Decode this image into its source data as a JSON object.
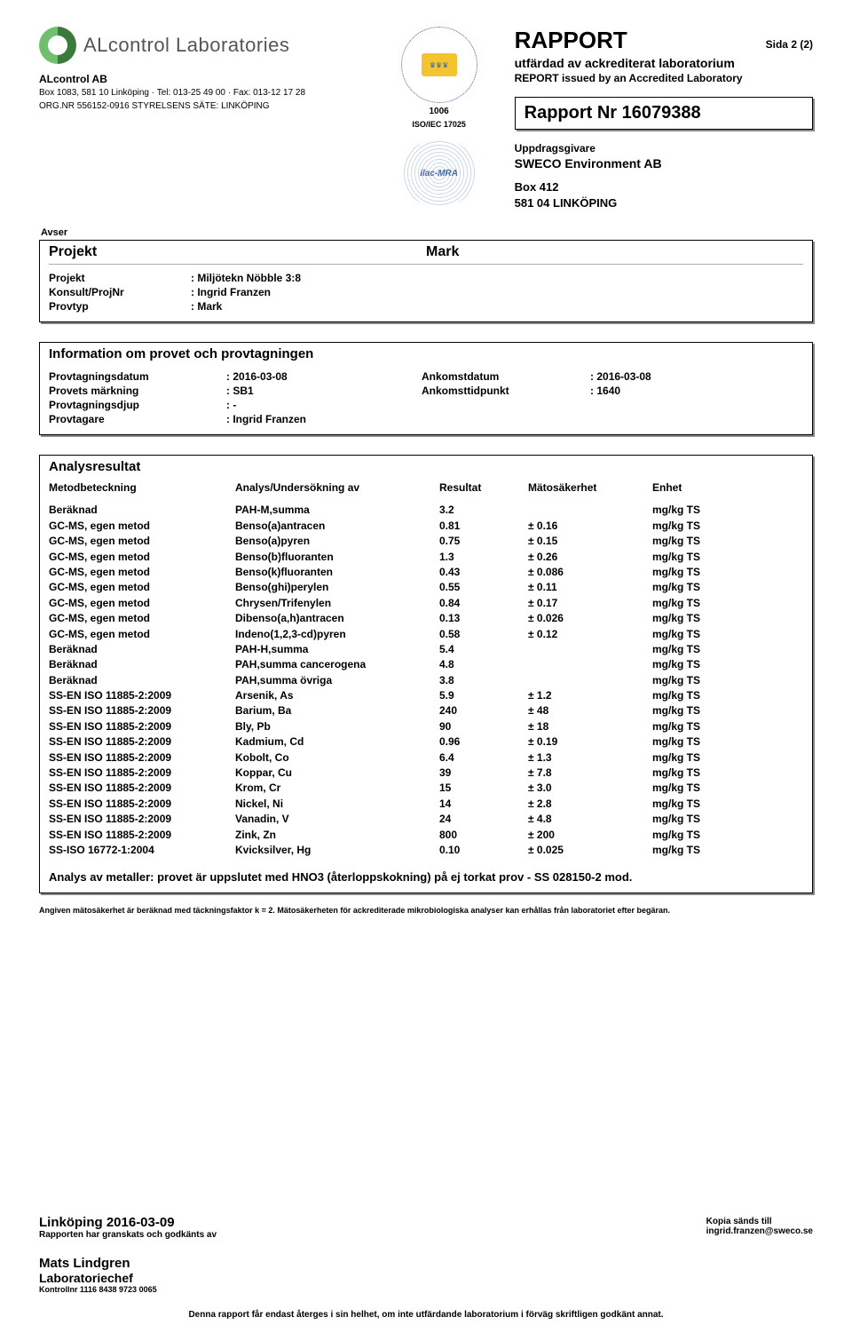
{
  "header": {
    "lab_name": "ALcontrol Laboratories",
    "company": "ALcontrol AB",
    "addr_line1": "Box 1083, 581 10  Linköping  ·  Tel: 013-25 49 00  ·  Fax: 013-12 17 28",
    "addr_line2": "ORG.NR 556152-0916  STYRELSENS SÄTE: LINKÖPING",
    "swedac_no": "1006",
    "swedac_std": "ISO/IEC 17025",
    "ilac_text": "ilac-MRA",
    "report_word": "RAPPORT",
    "page_label": "Sida",
    "page_value": "2 (2)",
    "issued_sv": "utfärdad av ackrediterat laboratorium",
    "issued_en": "REPORT issued by an Accredited Laboratory",
    "report_nr_label": "Rapport Nr",
    "report_nr": "16079388",
    "client_label": "Uppdragsgivare",
    "client_name": "SWECO Environment AB",
    "client_addr1": "Box 412",
    "client_addr2": "581 04  LINKÖPING"
  },
  "avser": {
    "label": "Avser",
    "projekt_word": "Projekt",
    "mark_word": "Mark",
    "rows": {
      "projekt_k": "Projekt",
      "projekt_v": "Miljötekn Nöbble 3:8",
      "konsult_k": "Konsult/ProjNr",
      "konsult_v": "Ingrid Franzen",
      "provtyp_k": "Provtyp",
      "provtyp_v": "Mark"
    }
  },
  "info": {
    "title": "Information om provet och provtagningen",
    "rows": {
      "pdatum_k": "Provtagningsdatum",
      "pdatum_v": "2016-03-08",
      "adatum_k": "Ankomstdatum",
      "adatum_v": "2016-03-08",
      "mark_k": "Provets märkning",
      "mark_v": "SB1",
      "atid_k": "Ankomsttidpunkt",
      "atid_v": "1640",
      "djup_k": "Provtagningsdjup",
      "djup_v": "-",
      "tagare_k": "Provtagare",
      "tagare_v": "Ingrid Franzen"
    }
  },
  "results": {
    "title": "Analysresultat",
    "columns": {
      "c1": "Metodbeteckning",
      "c2": "Analys/Undersökning av",
      "c3": "Resultat",
      "c4": "Mätosäkerhet",
      "c5": "Enhet"
    },
    "rows": [
      {
        "m": "Beräknad",
        "a": "PAH-M,summa",
        "r": "3.2",
        "u": "",
        "e": "mg/kg TS"
      },
      {
        "m": "GC-MS, egen metod",
        "a": "Benso(a)antracen",
        "r": "0.81",
        "u": "± 0.16",
        "e": "mg/kg TS"
      },
      {
        "m": "GC-MS, egen metod",
        "a": "Benso(a)pyren",
        "r": "0.75",
        "u": "± 0.15",
        "e": "mg/kg TS"
      },
      {
        "m": "GC-MS, egen metod",
        "a": "Benso(b)fluoranten",
        "r": "1.3",
        "u": "± 0.26",
        "e": "mg/kg TS"
      },
      {
        "m": "GC-MS, egen metod",
        "a": "Benso(k)fluoranten",
        "r": "0.43",
        "u": "± 0.086",
        "e": "mg/kg TS"
      },
      {
        "m": "GC-MS, egen metod",
        "a": "Benso(ghi)perylen",
        "r": "0.55",
        "u": "± 0.11",
        "e": "mg/kg TS"
      },
      {
        "m": "GC-MS, egen metod",
        "a": "Chrysen/Trifenylen",
        "r": "0.84",
        "u": "± 0.17",
        "e": "mg/kg TS"
      },
      {
        "m": "GC-MS, egen metod",
        "a": "Dibenso(a,h)antracen",
        "r": "0.13",
        "u": "± 0.026",
        "e": "mg/kg TS"
      },
      {
        "m": "GC-MS, egen metod",
        "a": "Indeno(1,2,3-cd)pyren",
        "r": "0.58",
        "u": "± 0.12",
        "e": "mg/kg TS"
      },
      {
        "m": "Beräknad",
        "a": "PAH-H,summa",
        "r": "5.4",
        "u": "",
        "e": "mg/kg TS"
      },
      {
        "m": "Beräknad",
        "a": "PAH,summa cancerogena",
        "r": "4.8",
        "u": "",
        "e": "mg/kg TS"
      },
      {
        "m": "Beräknad",
        "a": "PAH,summa övriga",
        "r": "3.8",
        "u": "",
        "e": "mg/kg TS"
      },
      {
        "m": "SS-EN ISO 11885-2:2009",
        "a": "Arsenik, As",
        "r": "5.9",
        "u": "± 1.2",
        "e": "mg/kg TS"
      },
      {
        "m": "SS-EN ISO 11885-2:2009",
        "a": "Barium, Ba",
        "r": "240",
        "u": "± 48",
        "e": "mg/kg TS"
      },
      {
        "m": "SS-EN ISO 11885-2:2009",
        "a": "Bly, Pb",
        "r": "90",
        "u": "± 18",
        "e": "mg/kg TS"
      },
      {
        "m": "SS-EN ISO 11885-2:2009",
        "a": "Kadmium, Cd",
        "r": "0.96",
        "u": "± 0.19",
        "e": "mg/kg TS"
      },
      {
        "m": "SS-EN ISO 11885-2:2009",
        "a": "Kobolt, Co",
        "r": "6.4",
        "u": "± 1.3",
        "e": "mg/kg TS"
      },
      {
        "m": "SS-EN ISO 11885-2:2009",
        "a": "Koppar, Cu",
        "r": "39",
        "u": "± 7.8",
        "e": "mg/kg TS"
      },
      {
        "m": "SS-EN ISO 11885-2:2009",
        "a": "Krom, Cr",
        "r": "15",
        "u": "± 3.0",
        "e": "mg/kg TS"
      },
      {
        "m": "SS-EN ISO 11885-2:2009",
        "a": "Nickel, Ni",
        "r": "14",
        "u": "± 2.8",
        "e": "mg/kg TS"
      },
      {
        "m": "SS-EN ISO 11885-2:2009",
        "a": "Vanadin, V",
        "r": "24",
        "u": "± 4.8",
        "e": "mg/kg TS"
      },
      {
        "m": "SS-EN ISO 11885-2:2009",
        "a": "Zink, Zn",
        "r": "800",
        "u": "± 200",
        "e": "mg/kg TS"
      },
      {
        "m": "SS-ISO 16772-1:2004",
        "a": "Kvicksilver, Hg",
        "r": "0.10",
        "u": "± 0.025",
        "e": "mg/kg TS"
      }
    ],
    "note": "Analys av metaller: provet är uppslutet med HNO3 (återloppskokning) på ej torkat prov - SS 028150-2 mod.",
    "fine": "Angiven mätosäkerhet är beräknad med täckningsfaktor k = 2. Mätosäkerheten för ackrediterade mikrobiologiska analyser kan erhållas från laboratoriet efter begäran."
  },
  "footer": {
    "place_date": "Linköping  2016-03-09",
    "approved": "Rapporten har granskats och godkänts av",
    "kopia": "Kopia sänds till",
    "email": "ingrid.franzen@sweco.se",
    "name": "Mats Lindgren",
    "role": "Laboratoriechef",
    "ctrl": "Kontrollnr 1116 8438 9723 0065",
    "disclaimer": "Denna rapport får endast återges i sin helhet, om inte utfärdande laboratorium i förväg skriftligen godkänt annat."
  }
}
